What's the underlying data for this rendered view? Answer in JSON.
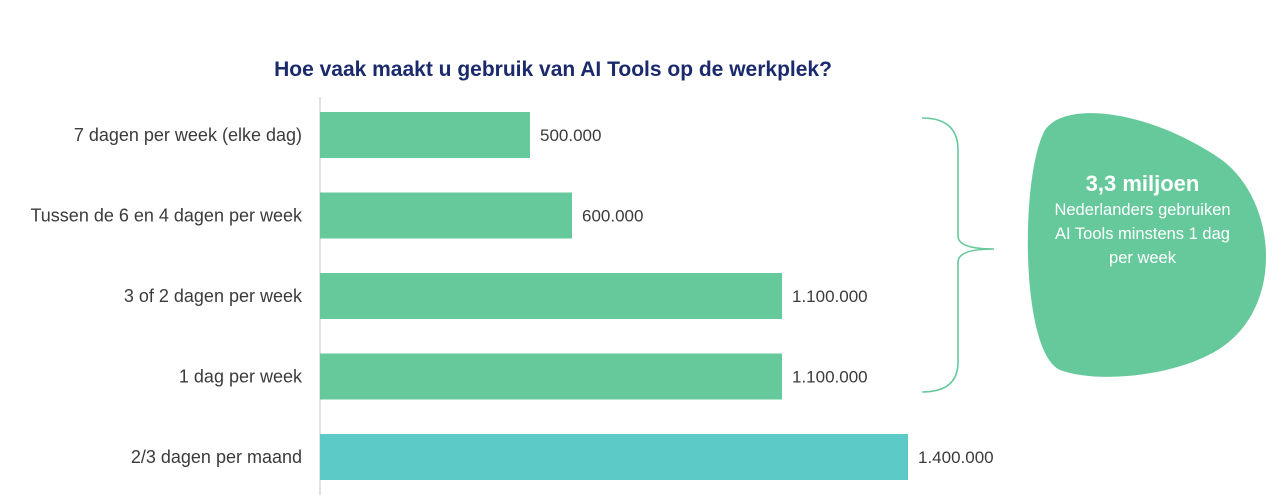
{
  "chart_data": {
    "type": "bar",
    "orientation": "horizontal",
    "title": "Hoe vaak maakt u gebruik van AI Tools op de werkplek?",
    "categories": [
      "7 dagen per week (elke dag)",
      "Tussen de 6 en 4 dagen per week",
      "3 of 2 dagen per week",
      "1 dag per week",
      "2/3 dagen per maand"
    ],
    "values": [
      500000,
      600000,
      1100000,
      1100000,
      1400000
    ],
    "value_labels": [
      "500.000",
      "600.000",
      "1.100.000",
      "1.100.000",
      "1.400.000"
    ],
    "xlim": [
      0,
      1400000
    ],
    "grid": false,
    "legend": "none",
    "colors": {
      "title": "#1a2a6c",
      "bar_weekly": "#66c99b",
      "bar_monthly": "#5ccbc8",
      "callout": "#66c99b",
      "brace": "#66c99b",
      "axis": "#d9d9d9"
    },
    "bar_colors": [
      "#66c99b",
      "#66c99b",
      "#66c99b",
      "#66c99b",
      "#5ccbc8"
    ]
  },
  "callout": {
    "headline": "3,3 miljoen",
    "line1": "Nederlanders gebruiken",
    "line2": "AI Tools minstens 1 dag",
    "line3": "per week"
  }
}
